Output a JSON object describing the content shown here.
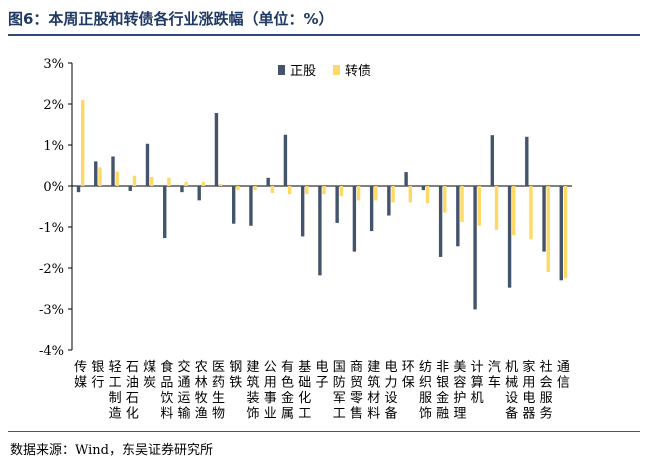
{
  "title": "图6：本周正股和转债各行业涨跌幅（单位：%）",
  "source": "数据来源：Wind，东吴证券研究所",
  "colors": {
    "stock": "#44546a",
    "bond": "#ffd966"
  },
  "chart_data": {
    "type": "bar",
    "title": "",
    "xlabel": "",
    "ylabel": "",
    "ylim": [
      -4,
      3
    ],
    "yticks": [
      "3%",
      "2%",
      "1%",
      "0%",
      "-1%",
      "-2%",
      "-3%",
      "-4%"
    ],
    "ytick_values": [
      3,
      2,
      1,
      0,
      -1,
      -2,
      -3,
      -4
    ],
    "grid": false,
    "legend_position": "top-right",
    "categories": [
      "传媒",
      "银行",
      "轻工制造",
      "石油石化",
      "煤炭",
      "食品饮料",
      "交通运输",
      "农林牧渔",
      "医药生物",
      "钢铁",
      "建筑装饰",
      "公用事业",
      "有色金属",
      "基础化工",
      "电子",
      "国防军工",
      "商贸零售",
      "建筑材料",
      "电力设备",
      "环保",
      "纺织服饰",
      "非银金融",
      "美容护理",
      "计算机",
      "汽车",
      "机械设备",
      "家用电器",
      "社会服务",
      "通信"
    ],
    "series": [
      {
        "name": "正股",
        "values": [
          -0.15,
          0.6,
          0.72,
          -0.12,
          1.03,
          -1.27,
          -0.15,
          -0.35,
          1.78,
          -0.92,
          -0.97,
          0.2,
          1.25,
          -1.23,
          -2.18,
          -0.9,
          -1.6,
          -1.1,
          -0.72,
          0.34,
          -0.1,
          -1.73,
          -1.47,
          -3.01,
          1.24,
          -2.48,
          1.2,
          -1.6,
          -2.3
        ]
      },
      {
        "name": "转债",
        "values": [
          2.1,
          0.45,
          0.35,
          0.25,
          0.22,
          0.2,
          0.1,
          0.1,
          0.05,
          -0.1,
          -0.1,
          -0.17,
          -0.2,
          -0.2,
          -0.2,
          -0.25,
          -0.35,
          -0.35,
          -0.4,
          -0.4,
          -0.42,
          -0.65,
          -0.88,
          -0.97,
          -1.07,
          -1.2,
          -1.3,
          -2.1,
          -2.25
        ]
      }
    ]
  }
}
